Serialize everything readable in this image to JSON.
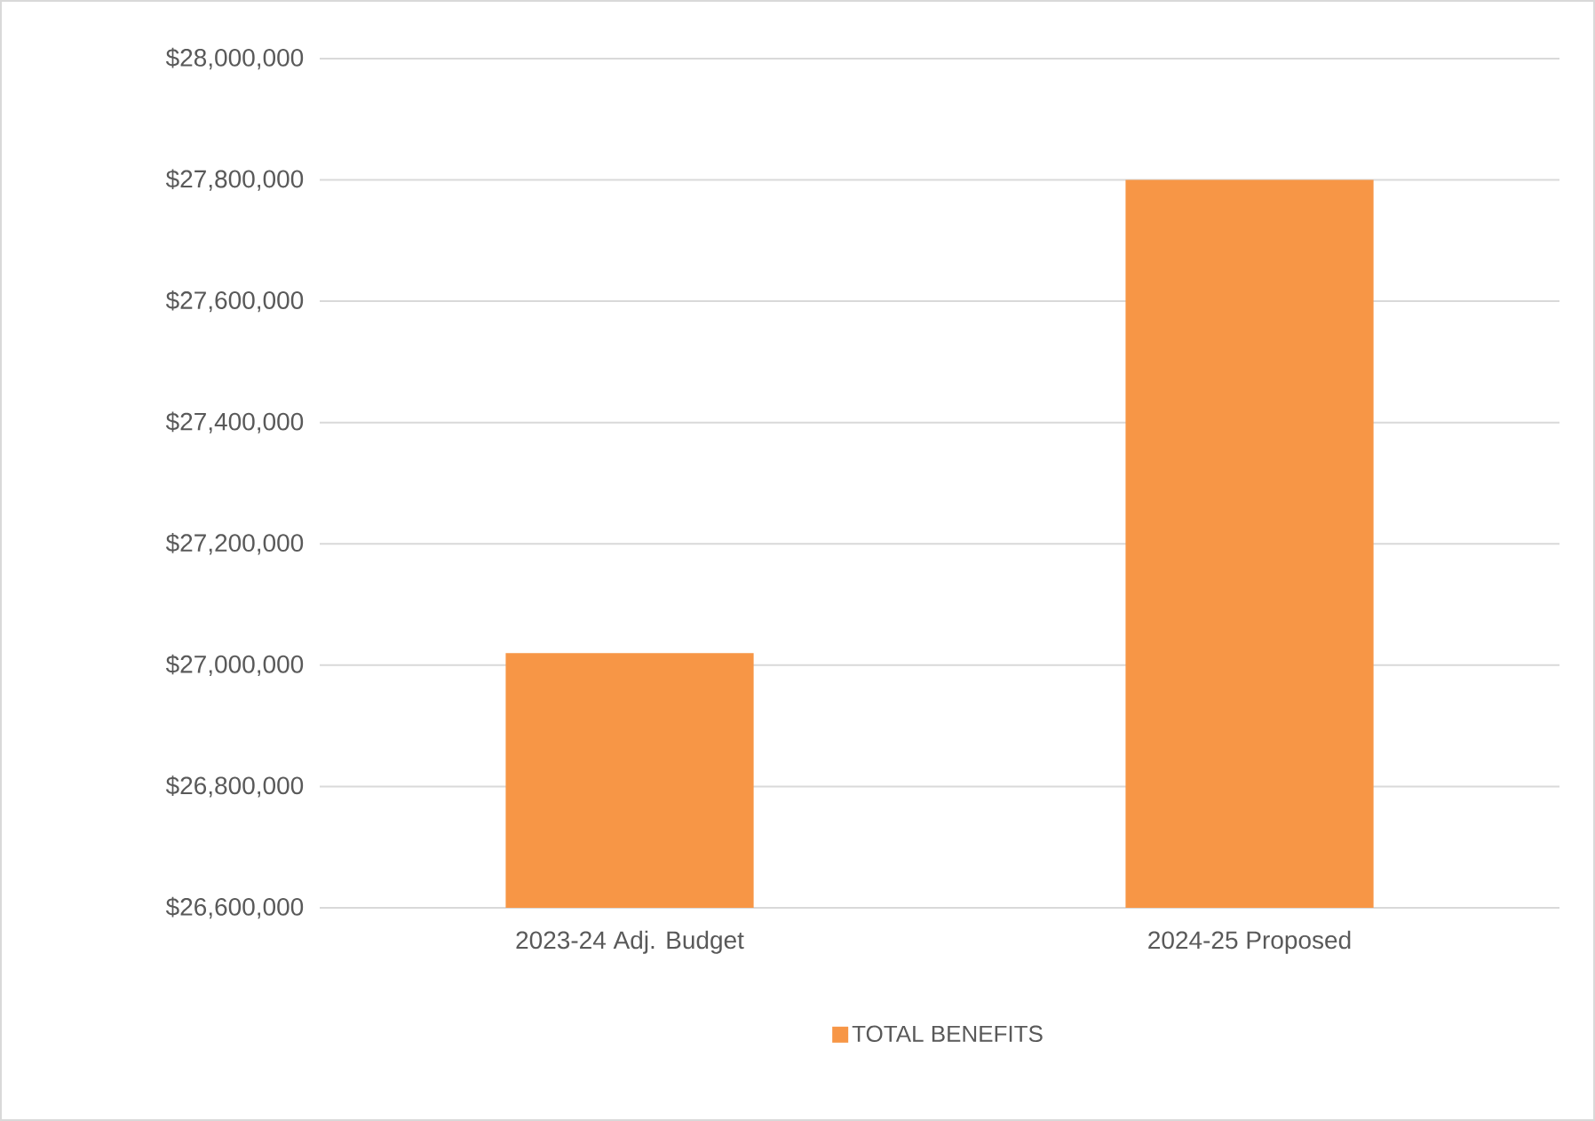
{
  "chart_data": {
    "type": "bar",
    "categories": [
      "2023-24 Adj. Budget",
      "2024-25 Proposed"
    ],
    "series": [
      {
        "name": "TOTAL BENEFITS",
        "color": "#f79646",
        "values": [
          27020000,
          27800000
        ]
      }
    ],
    "ylim": [
      26600000,
      28000000
    ],
    "yticks": [
      {
        "value": 26600000,
        "label": "$26,600,000"
      },
      {
        "value": 26800000,
        "label": "$26,800,000"
      },
      {
        "value": 27000000,
        "label": "$27,000,000"
      },
      {
        "value": 27200000,
        "label": "$27,200,000"
      },
      {
        "value": 27400000,
        "label": "$27,400,000"
      },
      {
        "value": 27600000,
        "label": "$27,600,000"
      },
      {
        "value": 27800000,
        "label": "$27,800,000"
      },
      {
        "value": 28000000,
        "label": "$28,000,000"
      }
    ],
    "grid": "y",
    "legend": "bottom"
  }
}
